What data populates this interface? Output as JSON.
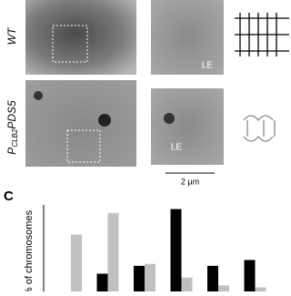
{
  "figure": {
    "rows": [
      {
        "label": "WT",
        "marker": "LE"
      },
      {
        "label_parts": [
          "P",
          "CLB2",
          "PDS5"
        ],
        "marker": "LE"
      }
    ],
    "scale_bar": "2 µm",
    "panel_label": "C"
  },
  "chart_data": {
    "type": "bar",
    "y_label": "% of chromosomes",
    "categories": [
      null,
      null,
      null,
      null,
      null,
      null
    ],
    "series": [
      {
        "color": "#000000",
        "values": [
          0,
          10,
          14,
          43,
          14,
          17
        ]
      },
      {
        "color": "#c0c0c0",
        "values": [
          30,
          41,
          15,
          8,
          4,
          3
        ]
      }
    ]
  }
}
